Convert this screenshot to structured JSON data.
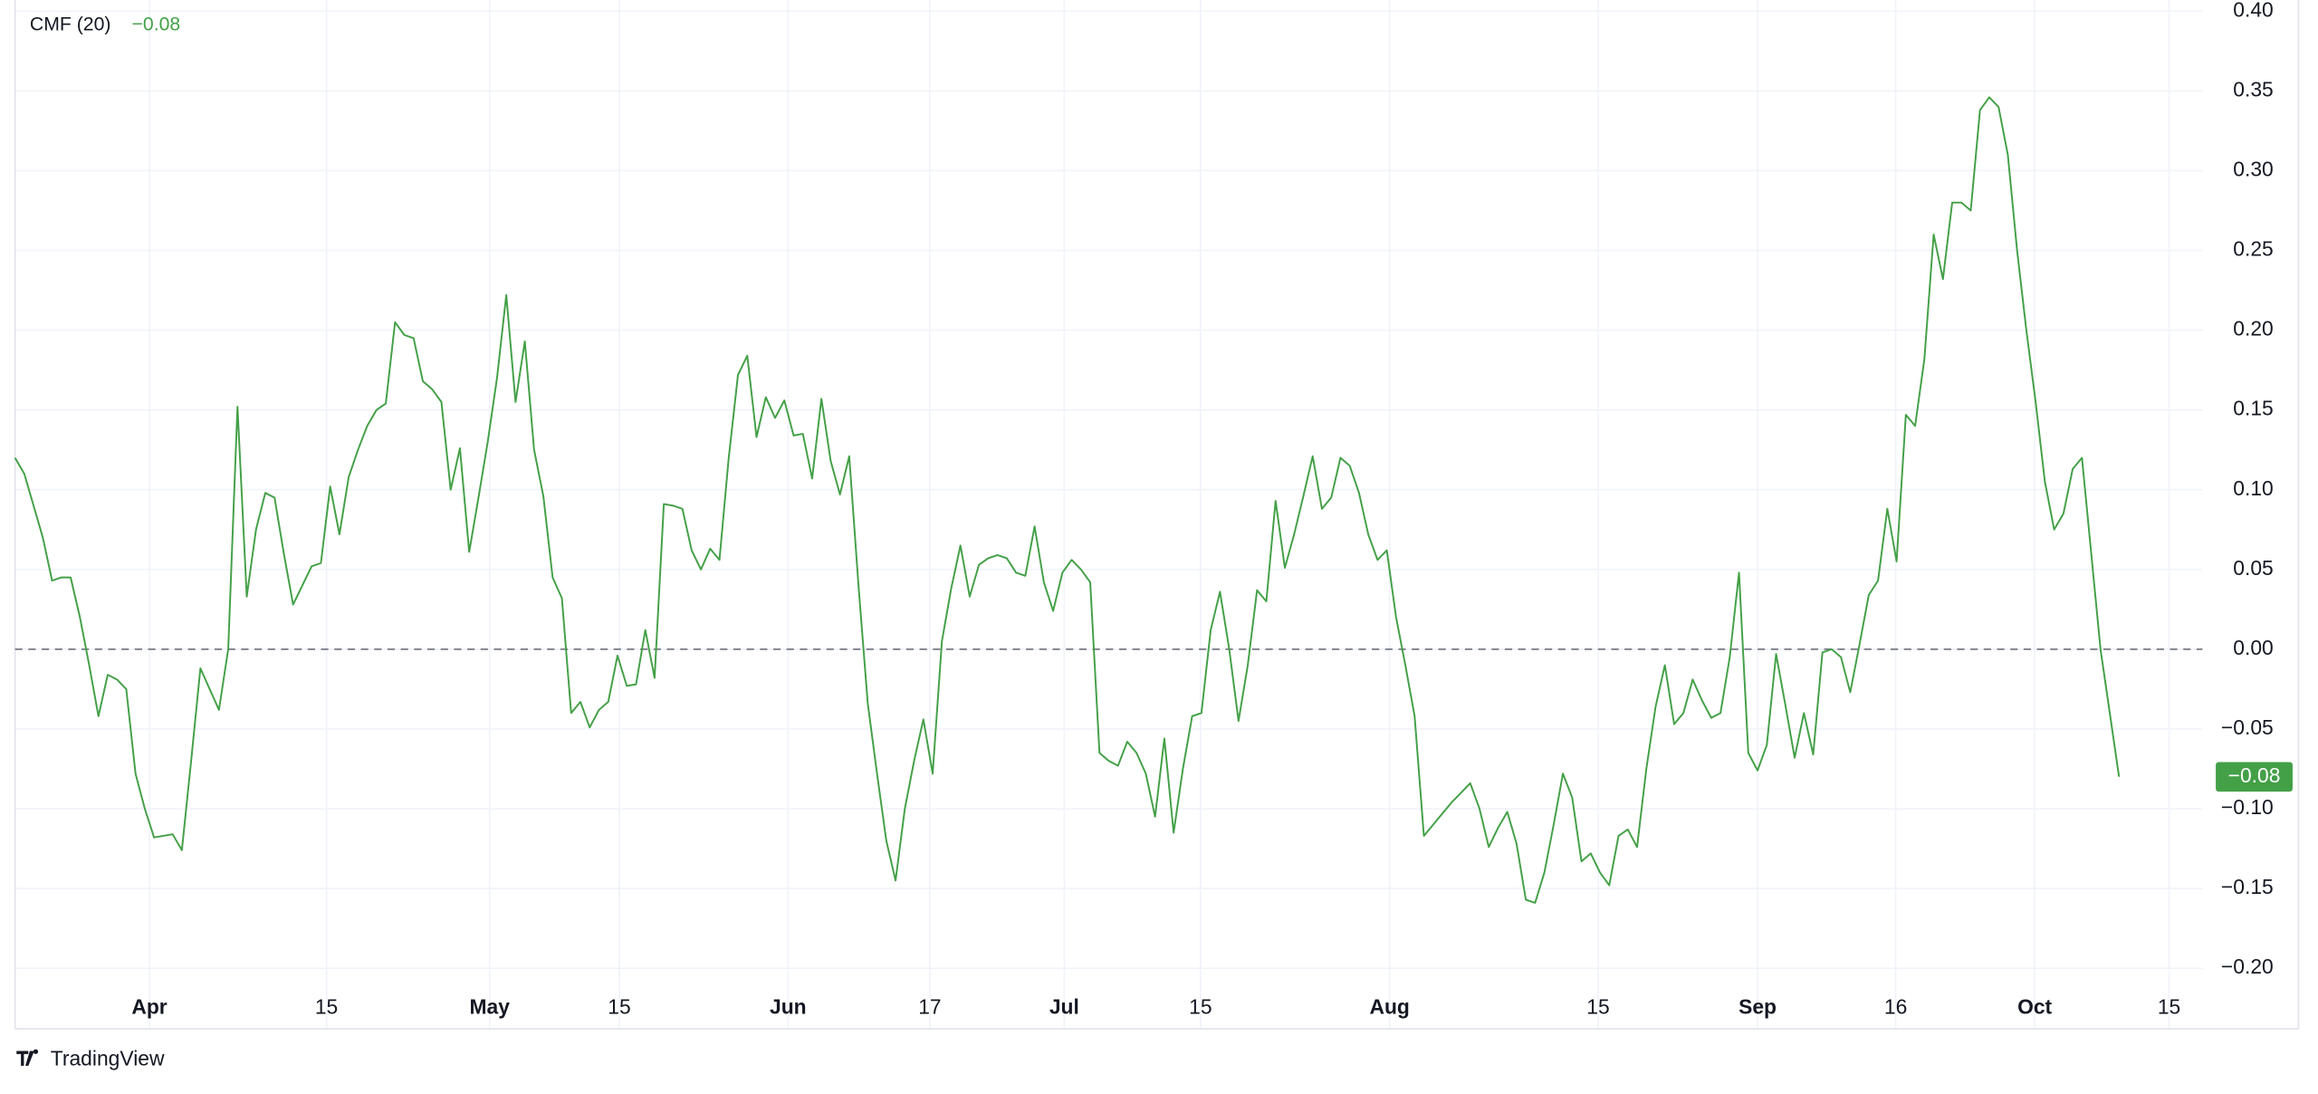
{
  "chart_data": {
    "type": "line",
    "series": [
      {
        "name": "CMF (20)",
        "color": "#43a047",
        "values": [
          0.12,
          0.11,
          0.09,
          0.07,
          0.043,
          0.045,
          0.045,
          0.02,
          -0.01,
          -0.042,
          -0.016,
          -0.019,
          -0.025,
          -0.078,
          -0.1,
          -0.118,
          -0.117,
          -0.116,
          -0.126,
          -0.07,
          -0.012,
          -0.025,
          -0.038,
          0.0,
          0.152,
          0.033,
          0.075,
          0.098,
          0.095,
          0.06,
          0.028,
          0.04,
          0.052,
          0.054,
          0.102,
          0.072,
          0.108,
          0.125,
          0.14,
          0.15,
          0.154,
          0.205,
          0.197,
          0.195,
          0.168,
          0.163,
          0.155,
          0.1,
          0.126,
          0.061,
          0.095,
          0.13,
          0.17,
          0.222,
          0.155,
          0.193,
          0.125,
          0.096,
          0.045,
          0.032,
          -0.04,
          -0.033,
          -0.049,
          -0.038,
          -0.033,
          -0.004,
          -0.023,
          -0.022,
          0.012,
          -0.018,
          0.091,
          0.09,
          0.088,
          0.062,
          0.05,
          0.063,
          0.056,
          0.12,
          0.172,
          0.184,
          0.133,
          0.158,
          0.145,
          0.156,
          0.134,
          0.135,
          0.107,
          0.157,
          0.118,
          0.097,
          0.121,
          0.04,
          -0.034,
          -0.078,
          -0.12,
          -0.145,
          -0.1,
          -0.07,
          -0.044,
          -0.078,
          0.005,
          0.038,
          0.065,
          0.033,
          0.053,
          0.057,
          0.059,
          0.057,
          0.048,
          0.046,
          0.077,
          0.042,
          0.024,
          0.048,
          0.056,
          0.05,
          0.042,
          -0.065,
          -0.07,
          -0.073,
          -0.058,
          -0.065,
          -0.078,
          -0.105,
          -0.056,
          -0.115,
          -0.075,
          -0.042,
          -0.04,
          0.012,
          0.036,
          0.0,
          -0.045,
          -0.01,
          0.037,
          0.03,
          0.093,
          0.051,
          0.072,
          0.096,
          0.121,
          0.088,
          0.095,
          0.12,
          0.115,
          0.098,
          0.072,
          0.056,
          0.062,
          0.02,
          -0.01,
          -0.042,
          -0.117,
          -0.11,
          -0.103,
          -0.096,
          -0.09,
          -0.084,
          -0.1,
          -0.124,
          -0.112,
          -0.102,
          -0.122,
          -0.157,
          -0.159,
          -0.14,
          -0.11,
          -0.078,
          -0.093,
          -0.133,
          -0.128,
          -0.14,
          -0.148,
          -0.117,
          -0.113,
          -0.124,
          -0.075,
          -0.036,
          -0.01,
          -0.047,
          -0.04,
          -0.019,
          -0.032,
          -0.043,
          -0.04,
          -0.005,
          0.048,
          -0.065,
          -0.076,
          -0.06,
          -0.003,
          -0.035,
          -0.068,
          -0.04,
          -0.066,
          -0.002,
          0.0,
          -0.005,
          -0.027,
          0.003,
          0.034,
          0.043,
          0.088,
          0.055,
          0.147,
          0.14,
          0.182,
          0.26,
          0.232,
          0.28,
          0.28,
          0.275,
          0.338,
          0.346,
          0.34,
          0.31,
          0.25,
          0.2,
          0.155,
          0.105,
          0.075,
          0.085,
          0.113,
          0.12,
          0.06,
          0.0,
          -0.04,
          -0.08
        ]
      }
    ],
    "legend_value": "−0.08",
    "last_value_label": "−0.08",
    "hline": 0,
    "xlim": [
      0,
      236
    ],
    "xticks": [
      {
        "value": 14.5,
        "label": "Apr"
      },
      {
        "value": 33.6,
        "label": "15"
      },
      {
        "value": 51.2,
        "label": "May"
      },
      {
        "value": 65.2,
        "label": "15"
      },
      {
        "value": 83.4,
        "label": "Jun"
      },
      {
        "value": 98.7,
        "label": "17"
      },
      {
        "value": 113.2,
        "label": "Jul"
      },
      {
        "value": 127.9,
        "label": "15"
      },
      {
        "value": 148.3,
        "label": "Aug"
      },
      {
        "value": 170.8,
        "label": "15"
      },
      {
        "value": 188.0,
        "label": "Sep"
      },
      {
        "value": 202.9,
        "label": "16"
      },
      {
        "value": 217.9,
        "label": "Oct"
      },
      {
        "value": 232.4,
        "label": "15"
      }
    ],
    "ylim": [
      -0.238,
      0.407
    ],
    "yticks": [
      {
        "value": 0.4,
        "label": "0.40"
      },
      {
        "value": 0.35,
        "label": "0.35"
      },
      {
        "value": 0.3,
        "label": "0.30"
      },
      {
        "value": 0.25,
        "label": "0.25"
      },
      {
        "value": 0.2,
        "label": "0.20"
      },
      {
        "value": 0.15,
        "label": "0.15"
      },
      {
        "value": 0.1,
        "label": "0.10"
      },
      {
        "value": 0.05,
        "label": "0.05"
      },
      {
        "value": 0,
        "label": "0.00"
      },
      {
        "value": -0.05,
        "label": "−0.05"
      },
      {
        "value": -0.1,
        "label": "−0.10"
      },
      {
        "value": -0.15,
        "label": "−0.15"
      },
      {
        "value": -0.2,
        "label": "−0.20"
      }
    ],
    "grid": true,
    "watermark": "TradingView"
  }
}
